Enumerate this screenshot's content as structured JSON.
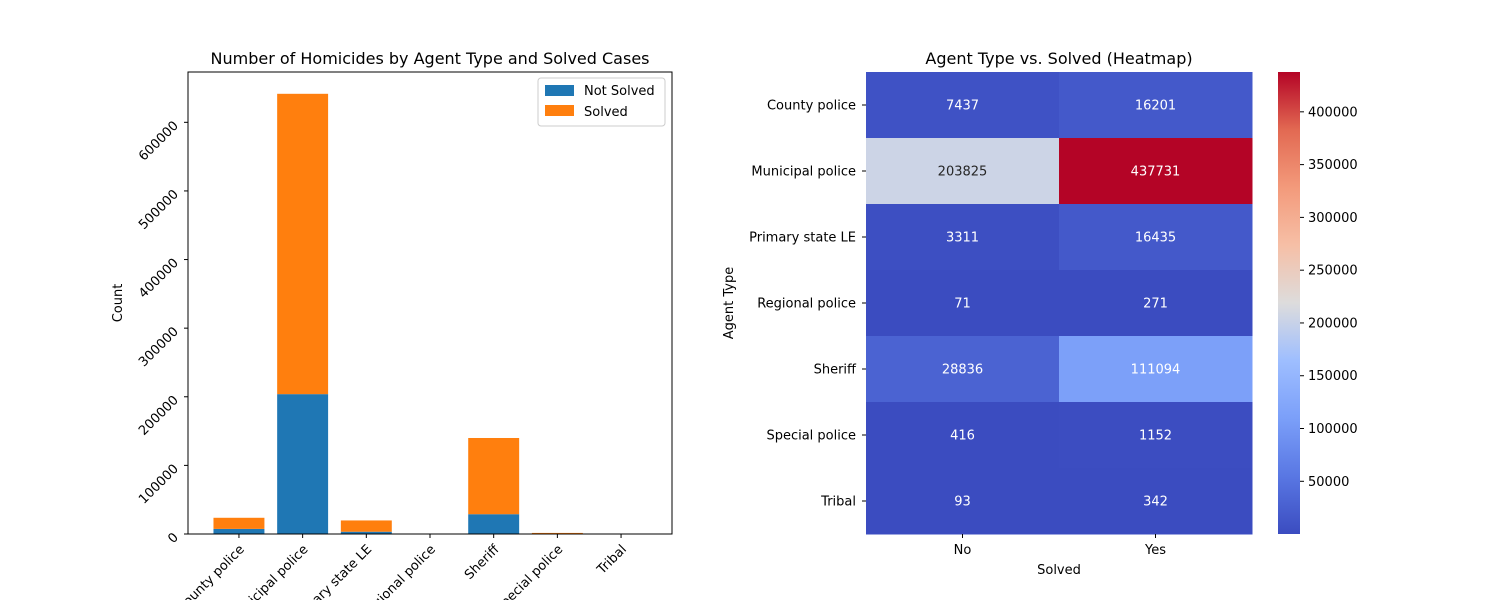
{
  "chart_data": [
    {
      "type": "bar",
      "stacked": true,
      "title": "Number of Homicides by Agent Type and Solved Cases",
      "xlabel": "",
      "ylabel": "Count",
      "categories": [
        "County police",
        "Municipal police",
        "Primary state LE",
        "Regional police",
        "Sheriff",
        "Special police",
        "Tribal"
      ],
      "series": [
        {
          "name": "Not Solved",
          "color": "#1f77b4",
          "values": [
            7437,
            203825,
            3311,
            71,
            28836,
            416,
            93
          ]
        },
        {
          "name": "Solved",
          "color": "#ff7f0e",
          "values": [
            16201,
            437731,
            16435,
            271,
            111094,
            1152,
            342
          ]
        }
      ],
      "ylim": [
        0,
        673335
      ],
      "yticks": [
        "0",
        "100000",
        "200000",
        "300000",
        "400000",
        "500000",
        "600000"
      ],
      "legend": "top-right",
      "grid": false
    },
    {
      "type": "heatmap",
      "title": "Agent Type vs. Solved (Heatmap)",
      "xlabel": "Solved",
      "ylabel": "Agent Type",
      "x": [
        "No",
        "Yes"
      ],
      "y": [
        "County police",
        "Municipal police",
        "Primary state LE",
        "Regional police",
        "Sheriff",
        "Special police",
        "Tribal"
      ],
      "values": [
        [
          7437,
          16201
        ],
        [
          203825,
          437731
        ],
        [
          3311,
          16435
        ],
        [
          71,
          271
        ],
        [
          28836,
          111094
        ],
        [
          416,
          1152
        ],
        [
          93,
          342
        ]
      ],
      "colormap": "coolwarm",
      "vmin": 71,
      "vmax": 437731,
      "colorbar_ticks": [
        "50000",
        "100000",
        "150000",
        "200000",
        "250000",
        "300000",
        "350000",
        "400000"
      ]
    }
  ]
}
